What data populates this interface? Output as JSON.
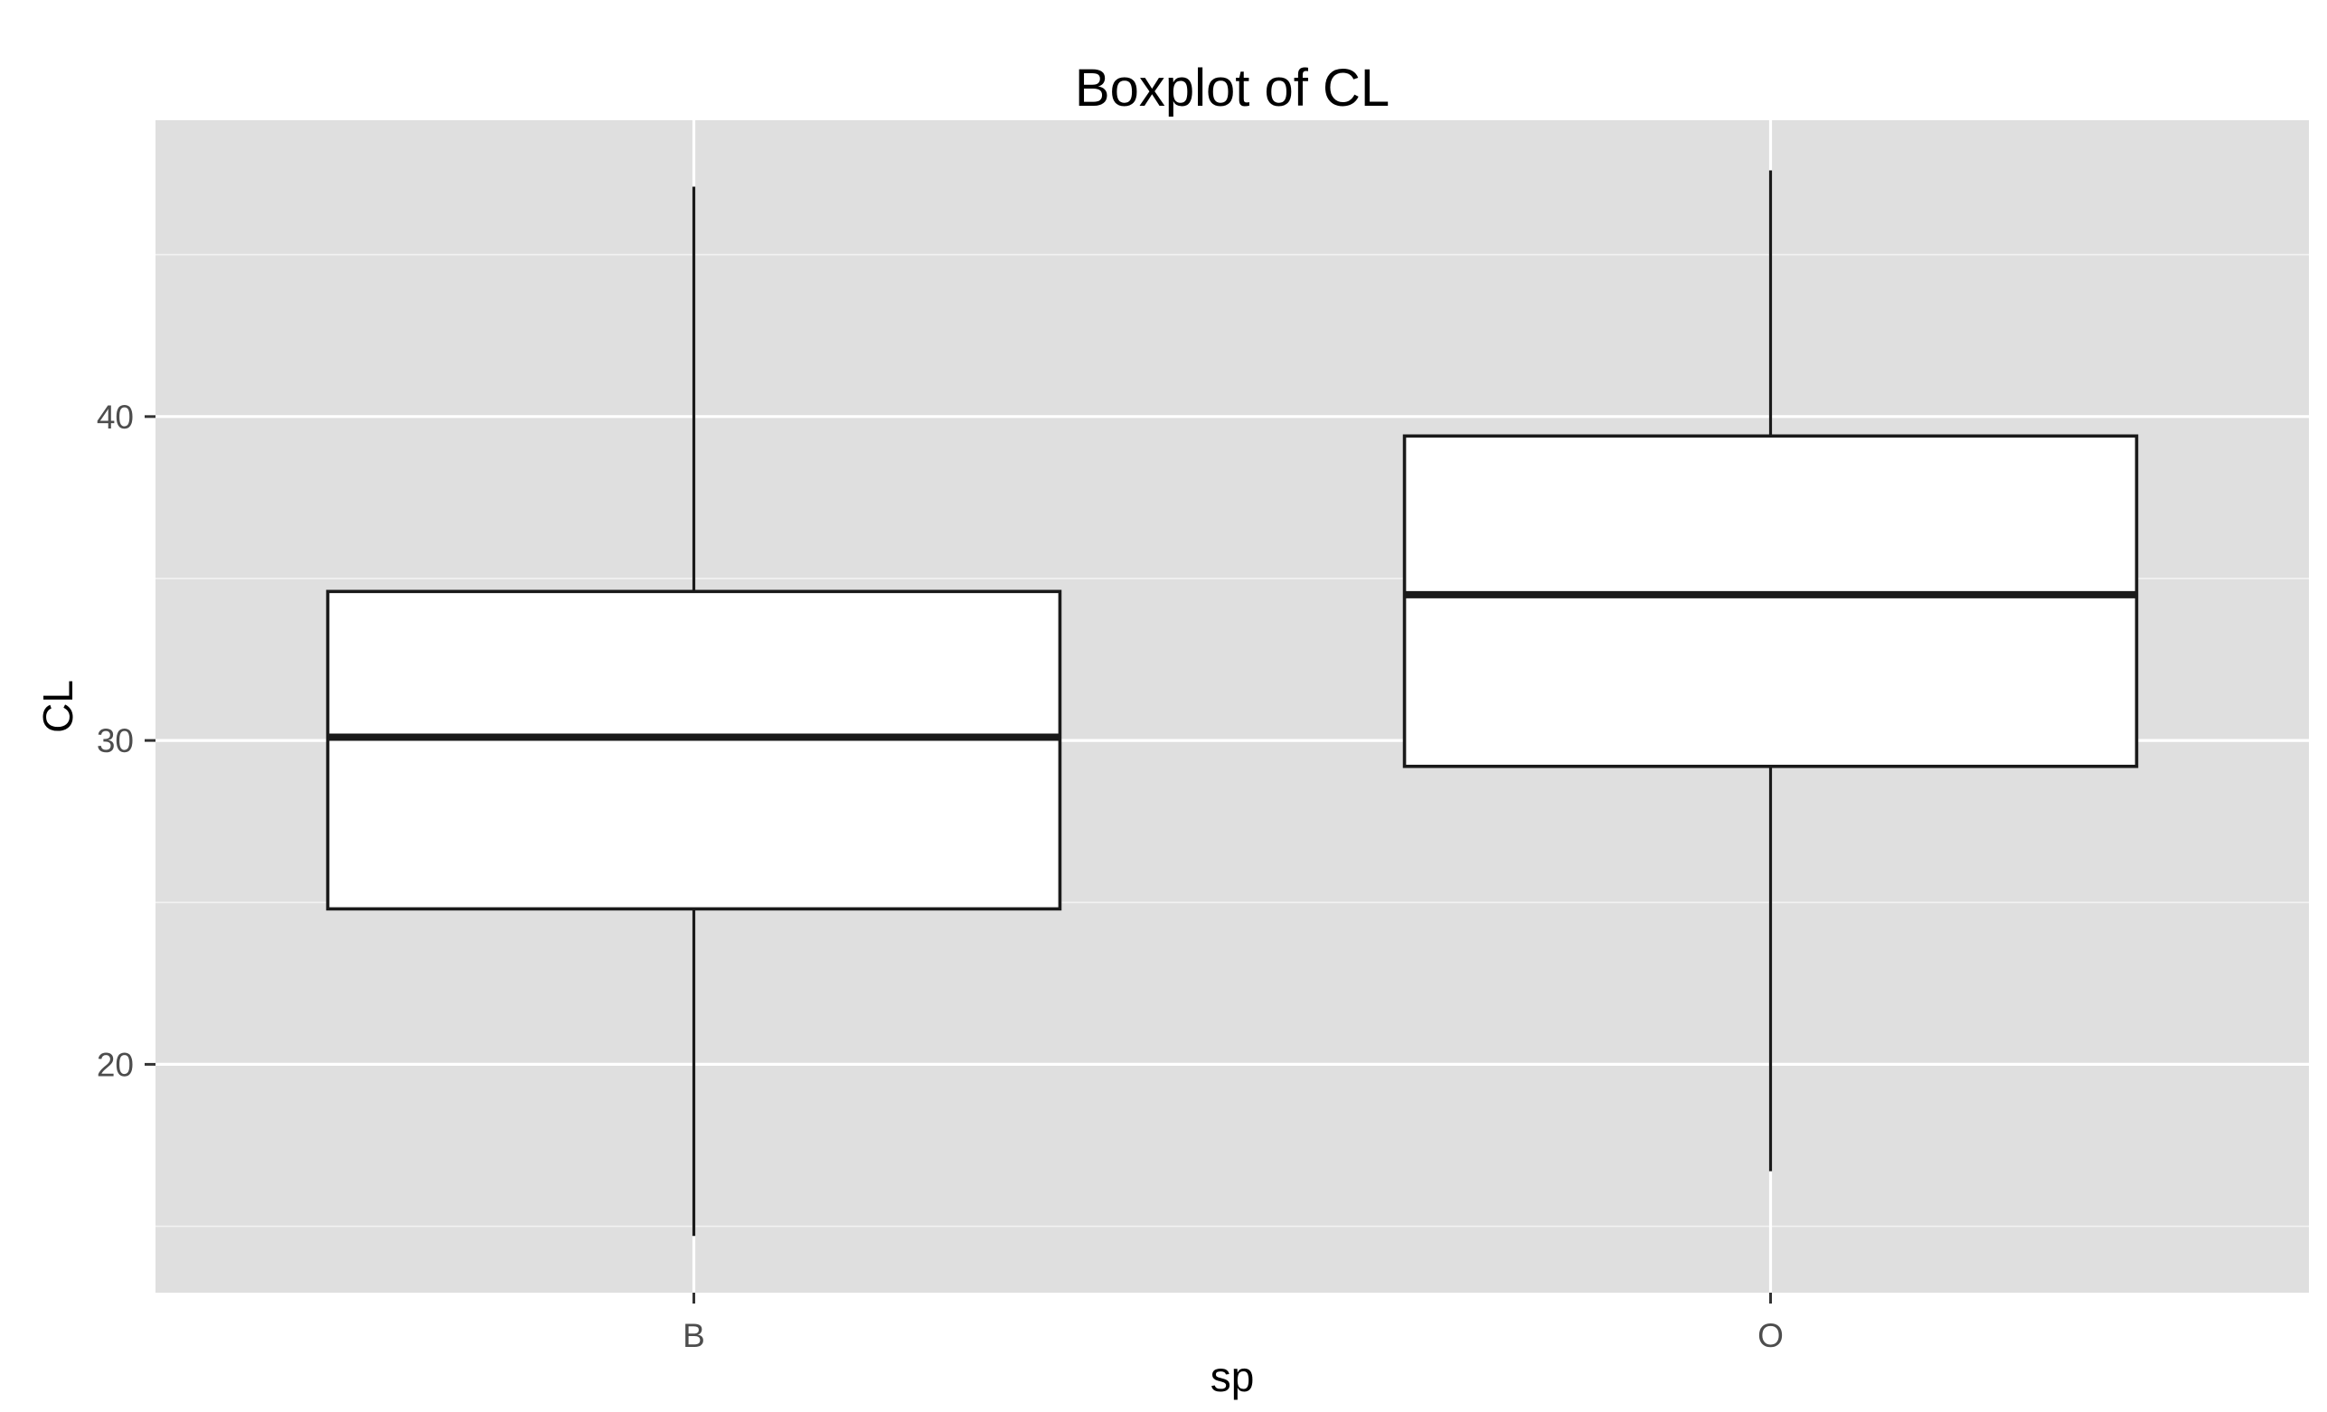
{
  "chart_data": {
    "type": "boxplot",
    "title": "Boxplot of CL",
    "xlabel": "sp",
    "ylabel": "CL",
    "categories": [
      "B",
      "O"
    ],
    "boxes": [
      {
        "category": "B",
        "min": 14.7,
        "q1": 24.8,
        "median": 30.1,
        "q3": 34.6,
        "max": 47.1
      },
      {
        "category": "O",
        "min": 16.7,
        "q1": 29.2,
        "median": 34.5,
        "q3": 39.4,
        "max": 47.6
      }
    ],
    "yticks": [
      20,
      30,
      40
    ],
    "ytick_labels": [
      "20",
      "30",
      "40"
    ],
    "ylim": [
      12.95,
      49.15
    ],
    "grid": true,
    "colors": {
      "panel_background": "#dfdfdf",
      "grid_major": "#ffffff",
      "grid_minor": "#f2f2f2",
      "box_fill": "#ffffff",
      "box_stroke": "#1a1a1a",
      "tick_label": "#4d4d4d",
      "axis_tick": "#333333"
    }
  }
}
